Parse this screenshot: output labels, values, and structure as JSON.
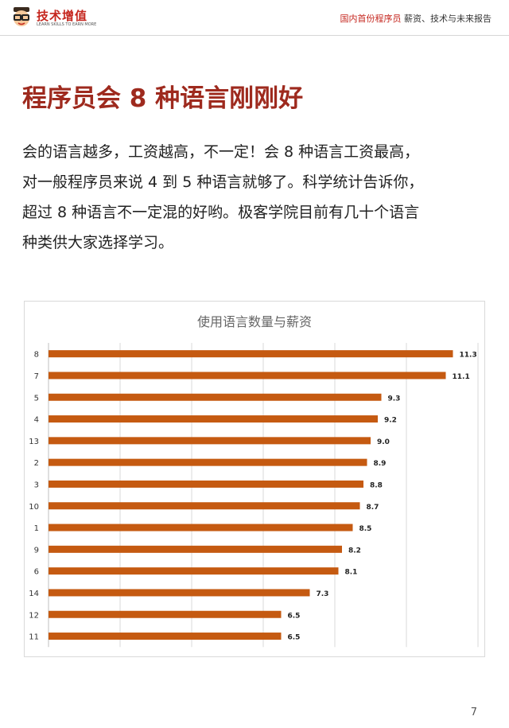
{
  "header": {
    "logo_name": "技术增值",
    "logo_tagline": "LEARN SKILLS TO EARN MORE",
    "report_title_accent": "国内首份程序员",
    "report_title_rest": " 薪资、技术与未来报告"
  },
  "page_title": "程序员会 8 种语言刚刚好",
  "body_lines": [
    "会的语言越多，工资越高，不一定！会 8 种语言工资最高，",
    "对一般程序员来说 4 到 5 种语言就够了。科学统计告诉你，",
    "超过 8 种语言不一定混的好哟。极客学院目前有几十个语言",
    "种类供大家选择学习。"
  ],
  "chart_data": {
    "type": "bar",
    "orientation": "horizontal",
    "title": "使用语言数量与薪资",
    "categories": [
      "8",
      "7",
      "5",
      "4",
      "13",
      "2",
      "3",
      "10",
      "1",
      "9",
      "6",
      "14",
      "12",
      "11"
    ],
    "values": [
      11.3,
      11.1,
      9.3,
      9.2,
      9.0,
      8.9,
      8.8,
      8.7,
      8.5,
      8.2,
      8.1,
      7.3,
      6.5,
      6.5
    ],
    "value_labels": [
      "11.3",
      "11.1",
      "9.3",
      "9.2",
      "9.0",
      "8.9",
      "8.8",
      "8.7",
      "8.5",
      "8.2",
      "8.1",
      "7.3",
      "6.5",
      "6.5"
    ],
    "xlim": [
      0,
      12
    ],
    "grid": true,
    "bar_color": "#c55a11",
    "legend": "none"
  },
  "page_number": "7",
  "colors": {
    "accent": "#c5261e",
    "title": "#9e2a1e",
    "bar": "#c55a11"
  }
}
